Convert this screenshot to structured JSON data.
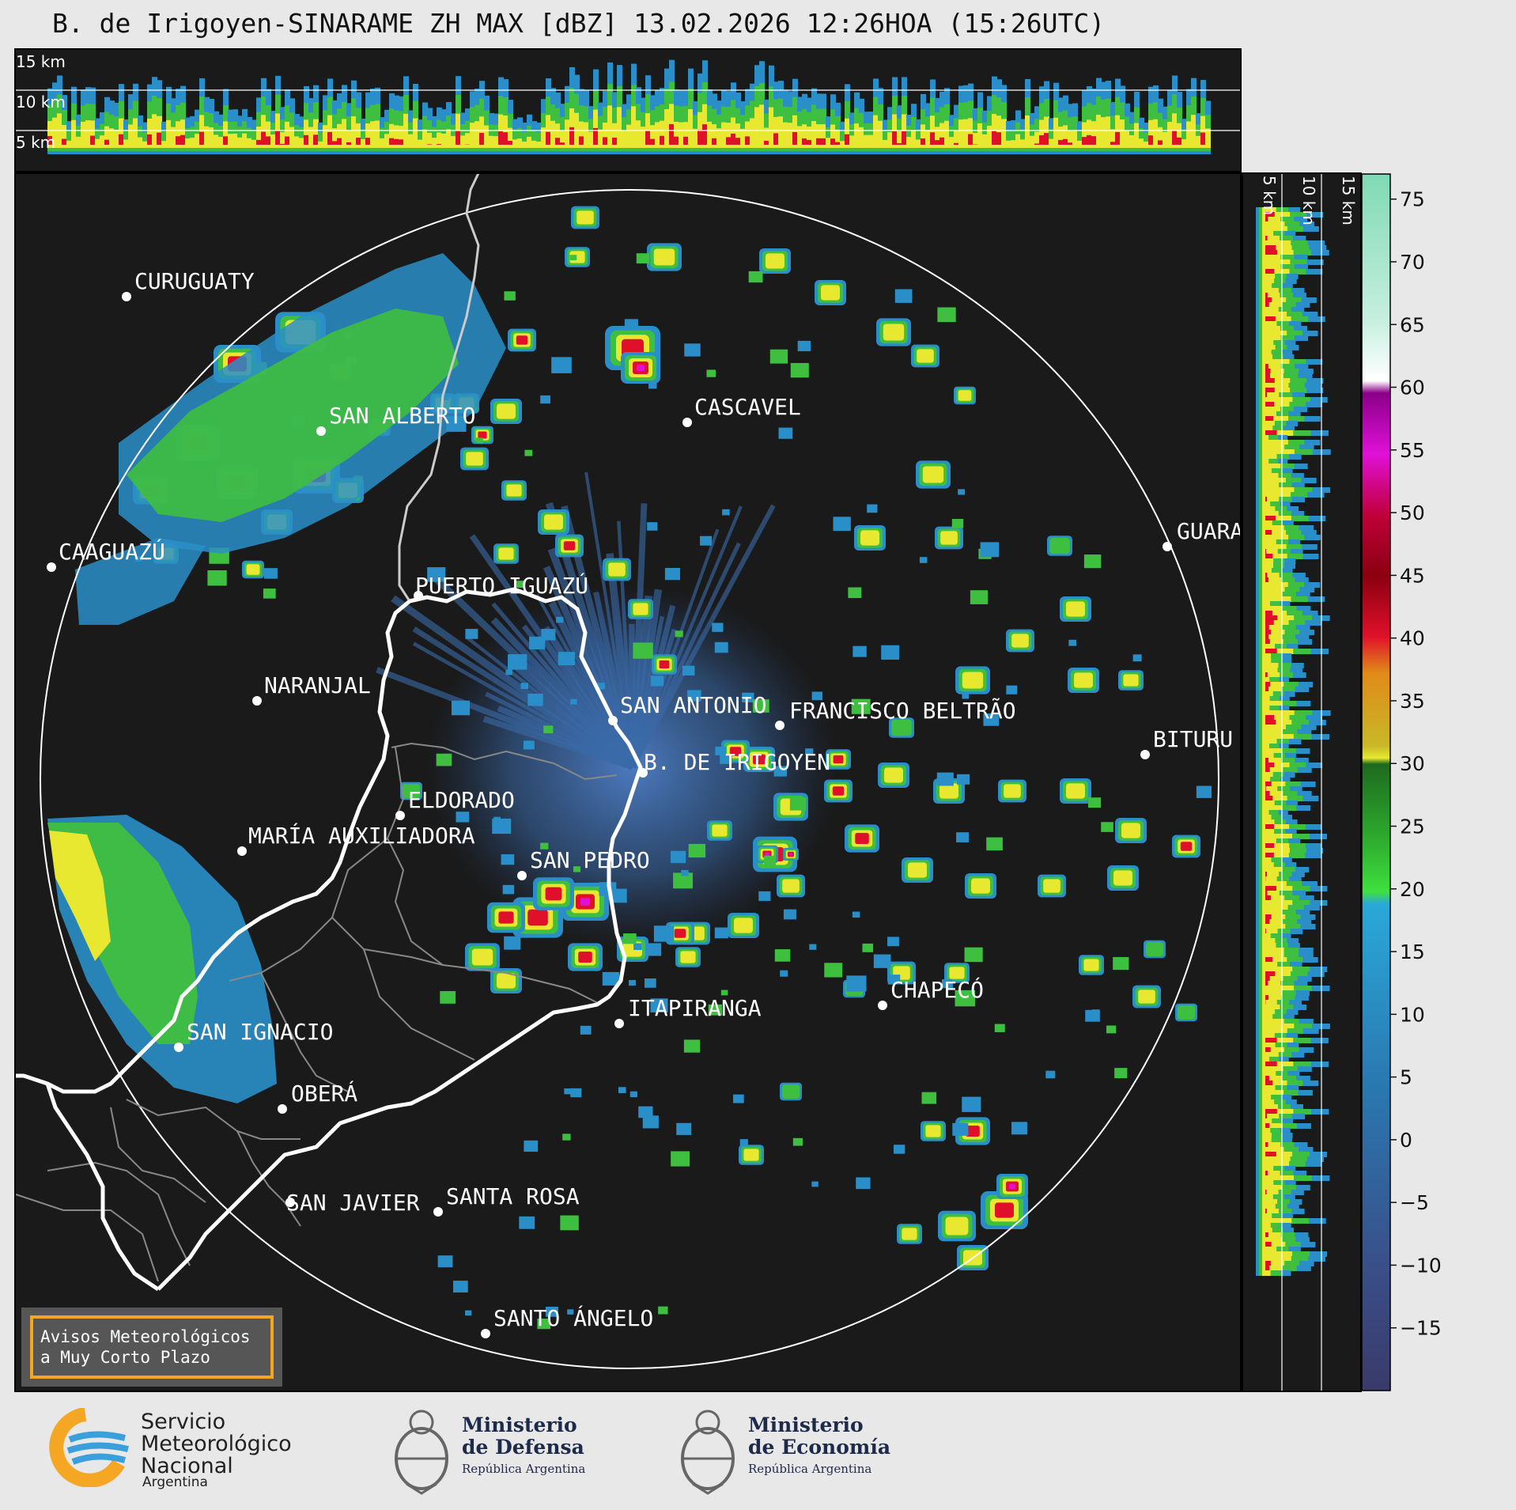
{
  "title": "B. de Irigoyen-SINARAME ZH MAX [dBZ] 13.02.2026 12:26HOA (15:26UTC)",
  "top_panel": {
    "altitude_labels": [
      "15 km",
      "10 km",
      "5 km"
    ]
  },
  "side_panel": {
    "altitude_labels": [
      "5 km",
      "10 km",
      "15 km"
    ]
  },
  "colorbar": {
    "unit": "dBZ",
    "ticks": [
      "75",
      "70",
      "65",
      "60",
      "55",
      "50",
      "45",
      "40",
      "35",
      "30",
      "25",
      "20",
      "15",
      "10",
      "5",
      "0",
      "−5",
      "−10",
      "−15"
    ],
    "range": [
      -20,
      77
    ],
    "colors": {
      "low": "#3a3f6e",
      "blue": "#2a8fc8",
      "green": "#3fd43f",
      "darkgreen": "#1e7a1e",
      "yellow": "#e8e830",
      "orange": "#e08a18",
      "red": "#e0102a",
      "darkred": "#8a0010",
      "magenta": "#e010d8",
      "purple": "#900090",
      "white": "#ffffff",
      "teal": "#80d8b8"
    }
  },
  "map": {
    "radar_site": "B. DE IRIGOYEN",
    "cities": [
      {
        "name": "CURUGUATY"
      },
      {
        "name": "SAN ALBERTO"
      },
      {
        "name": "CASCAVEL"
      },
      {
        "name": "CAAGUAZÚ"
      },
      {
        "name": "PUERTO IGUAZÚ"
      },
      {
        "name": "GUARA"
      },
      {
        "name": "NARANJAL"
      },
      {
        "name": "SAN ANTONIO"
      },
      {
        "name": "FRANCISCO BELTRÃO"
      },
      {
        "name": "BITURU"
      },
      {
        "name": "B. DE IRIGOYEN"
      },
      {
        "name": "ELDORADO"
      },
      {
        "name": "MARÍA AUXILIADORA"
      },
      {
        "name": "SAN PEDRO"
      },
      {
        "name": "CHAPECÓ"
      },
      {
        "name": "ITAPIRANGA"
      },
      {
        "name": "SAN IGNACIO"
      },
      {
        "name": "OBERÁ"
      },
      {
        "name": "SAN JAVIER"
      },
      {
        "name": "SANTA ROSA"
      },
      {
        "name": "SANTO ÁNGELO"
      }
    ],
    "warning_box": {
      "line1": "Avisos Meteorológicos",
      "line2": "a Muy Corto Plazo",
      "border_color": "#f5a623"
    }
  },
  "footer": {
    "smn": {
      "line1": "Servicio",
      "line2": "Meteorológico",
      "line3": "Nacional",
      "country": "Argentina"
    },
    "defensa": {
      "line1": "Ministerio",
      "line2": "de Defensa",
      "sub": "República Argentina"
    },
    "economia": {
      "line1": "Ministerio",
      "line2": "de Economía",
      "sub": "República Argentina"
    }
  }
}
